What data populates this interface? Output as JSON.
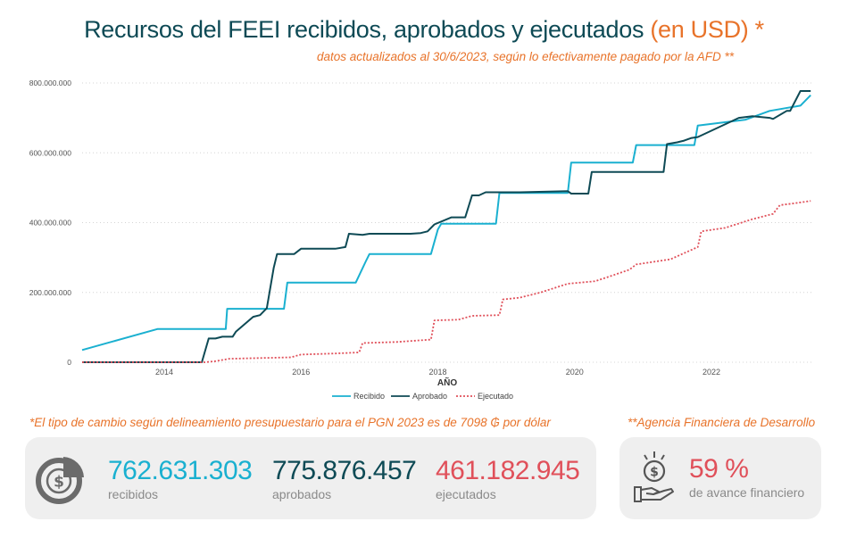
{
  "header": {
    "title": "Recursos del FEEI recibidos, aprobados y ejecutados",
    "title_accent": "(en USD) *",
    "subtitle": "datos actualizados al 30/6/2023, según lo efectivamente pagado por la AFD **"
  },
  "notes": {
    "exchange_rate": "*El tipo de cambio según delineamiento presupuestario para el PGN 2023 es de 7098 ₲ por dólar",
    "afd": "**Agencia Financiera de Desarrollo"
  },
  "kpis": {
    "recibidos": {
      "value": "762.631.303",
      "label": "recibidos",
      "color": "#1ab0d0"
    },
    "aprobados": {
      "value": "775.876.457",
      "label": "aprobados",
      "color": "#0e4a55"
    },
    "ejecutados": {
      "value": "461.182.945",
      "label": "ejecutados",
      "color": "#e0505a"
    },
    "avance": {
      "value": "59 %",
      "label": "de avance financiero",
      "color": "#e0505a"
    }
  },
  "icons": {
    "kpi_main": "pie-chart-dollar-icon",
    "kpi_side": "hand-coins-icon"
  },
  "chart_data": {
    "type": "line",
    "title": "",
    "xlabel": "AÑO",
    "ylabel": "",
    "xlim": [
      2012.8,
      2023.5
    ],
    "ylim": [
      0,
      800000000
    ],
    "x_ticks": [
      2014,
      2016,
      2018,
      2020,
      2022
    ],
    "y_ticks": [
      0,
      200000000,
      400000000,
      600000000,
      800000000
    ],
    "y_tick_labels": [
      "0",
      "200.000.000",
      "400.000.000",
      "600.000.000",
      "800.000.000"
    ],
    "grid": true,
    "legend_position": "bottom",
    "series": [
      {
        "name": "Recibido",
        "color": "#1ab0d0",
        "style": "solid",
        "x": [
          2012.8,
          2013.9,
          2014.9,
          2014.92,
          2015.6,
          2015.75,
          2015.8,
          2016.8,
          2016.95,
          2017.0,
          2017.9,
          2018.0,
          2018.05,
          2018.85,
          2018.9,
          2018.95,
          2019.9,
          2019.95,
          2020.85,
          2020.9,
          2021.75,
          2021.8,
          2022.5,
          2022.85,
          2023.3,
          2023.45
        ],
        "y": [
          35000000,
          95000000,
          95000000,
          153000000,
          153000000,
          153000000,
          228000000,
          228000000,
          290000000,
          310000000,
          310000000,
          380000000,
          397000000,
          397000000,
          485000000,
          485000000,
          485000000,
          572000000,
          572000000,
          622000000,
          622000000,
          678000000,
          695000000,
          720000000,
          735000000,
          765000000
        ]
      },
      {
        "name": "Aprobado",
        "color": "#0e4a55",
        "style": "solid",
        "x": [
          2012.8,
          2014.55,
          2014.65,
          2014.75,
          2014.85,
          2015.0,
          2015.05,
          2015.3,
          2015.4,
          2015.5,
          2015.6,
          2015.65,
          2015.9,
          2016.0,
          2016.5,
          2016.65,
          2016.7,
          2016.9,
          2017.0,
          2017.6,
          2017.75,
          2017.85,
          2017.95,
          2018.2,
          2018.4,
          2018.5,
          2018.6,
          2018.7,
          2018.9,
          2019.2,
          2019.9,
          2019.95,
          2020.2,
          2020.25,
          2021.1,
          2021.3,
          2021.35,
          2021.5,
          2021.6,
          2021.7,
          2021.8,
          2022.4,
          2022.6,
          2022.85,
          2022.9,
          2023.1,
          2023.15,
          2023.3,
          2023.45
        ],
        "y": [
          0,
          0,
          68000000,
          68000000,
          73000000,
          73000000,
          88000000,
          130000000,
          135000000,
          155000000,
          270000000,
          310000000,
          310000000,
          325000000,
          325000000,
          330000000,
          368000000,
          365000000,
          368000000,
          368000000,
          370000000,
          375000000,
          395000000,
          415000000,
          415000000,
          478000000,
          478000000,
          487000000,
          487000000,
          487000000,
          490000000,
          483000000,
          483000000,
          545000000,
          545000000,
          545000000,
          625000000,
          630000000,
          635000000,
          642000000,
          645000000,
          700000000,
          705000000,
          700000000,
          697000000,
          720000000,
          720000000,
          777000000,
          777000000
        ]
      },
      {
        "name": "Ejecutado",
        "color": "#e0505a",
        "style": "dotted",
        "x": [
          2012.8,
          2014.6,
          2014.75,
          2014.95,
          2015.4,
          2015.85,
          2016.0,
          2016.5,
          2016.85,
          2016.9,
          2017.4,
          2017.9,
          2017.95,
          2018.3,
          2018.5,
          2018.9,
          2018.95,
          2019.2,
          2019.5,
          2019.9,
          2020.3,
          2020.5,
          2020.8,
          2020.9,
          2021.4,
          2021.8,
          2021.85,
          2022.2,
          2022.6,
          2022.9,
          2023.0,
          2023.2,
          2023.45
        ],
        "y": [
          0,
          0,
          3000000,
          10000000,
          12000000,
          14000000,
          22000000,
          25000000,
          28000000,
          55000000,
          58000000,
          65000000,
          120000000,
          122000000,
          133000000,
          135000000,
          180000000,
          185000000,
          200000000,
          225000000,
          232000000,
          245000000,
          265000000,
          280000000,
          295000000,
          330000000,
          375000000,
          385000000,
          410000000,
          425000000,
          450000000,
          455000000,
          462000000
        ]
      }
    ]
  }
}
